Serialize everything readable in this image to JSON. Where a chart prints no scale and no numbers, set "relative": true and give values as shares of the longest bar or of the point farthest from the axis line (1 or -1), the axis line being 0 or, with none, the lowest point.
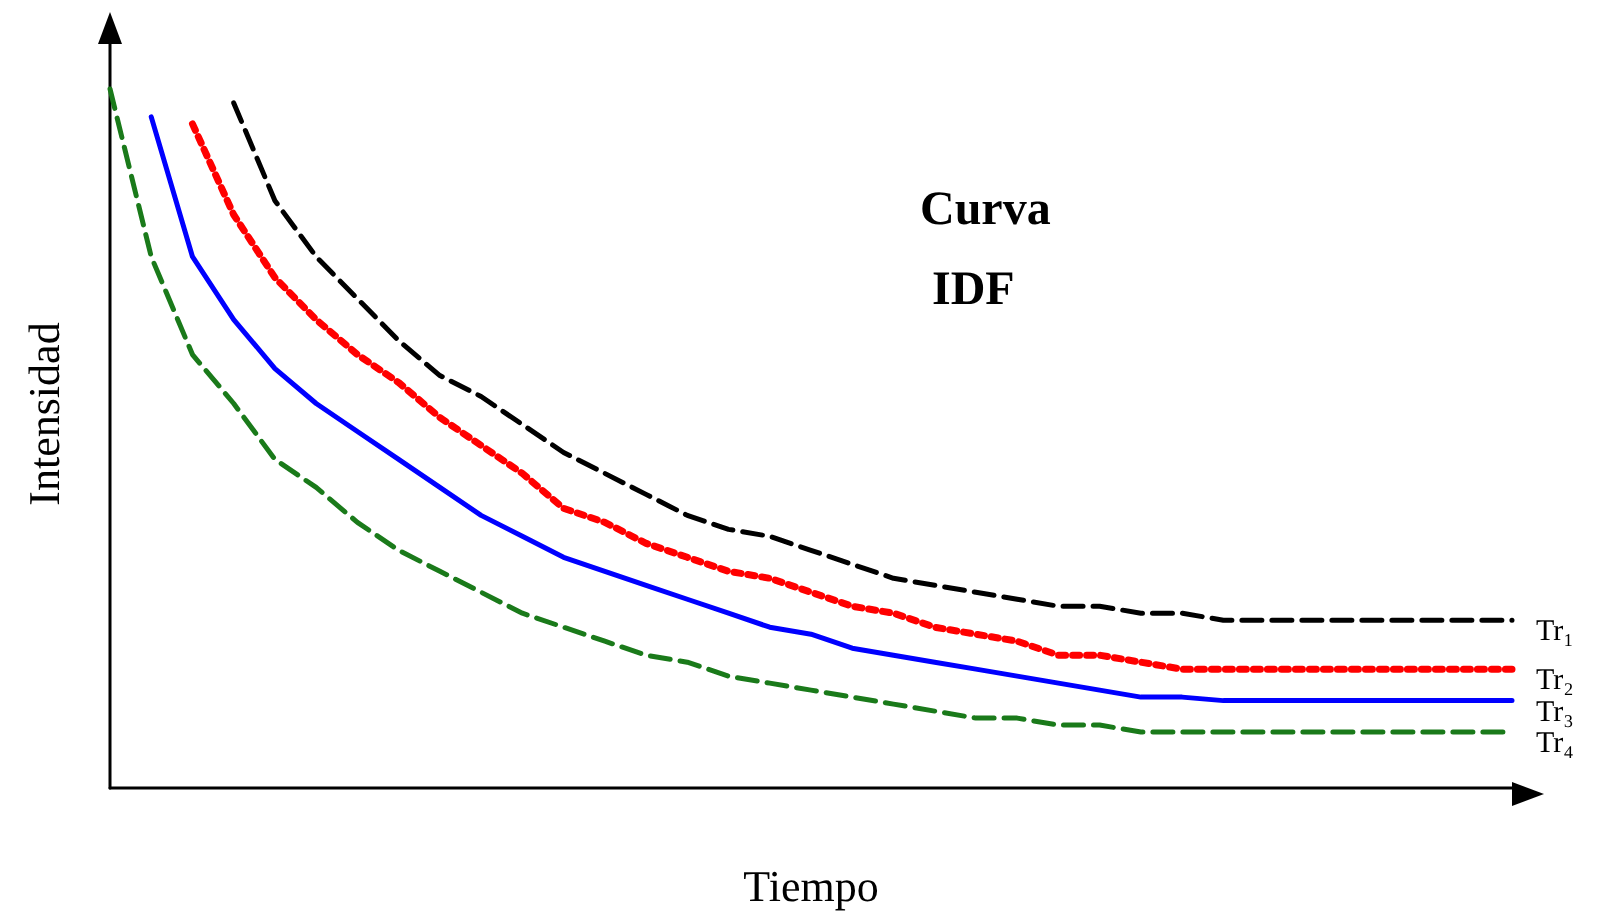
{
  "chart_data": {
    "type": "line",
    "title": "Curva IDF",
    "xlabel": "Tiempo",
    "ylabel": "Intensidad",
    "relative": true,
    "grid": false,
    "legend": false,
    "marker": "none",
    "categories": [
      null,
      null,
      null,
      null,
      null,
      null,
      null,
      null,
      null,
      null,
      null,
      null,
      null,
      null,
      null,
      null,
      null,
      null,
      null,
      null,
      null,
      null,
      null,
      null,
      null,
      null,
      null,
      null,
      null,
      null,
      null,
      null,
      null,
      null,
      null
    ],
    "series": [
      {
        "name": "Tr₁",
        "color": "#000000",
        "line_style": "dashed",
        "values": [
          null,
          null,
          null,
          0.98,
          0.84,
          0.76,
          0.7,
          0.64,
          0.59,
          0.56,
          0.52,
          0.48,
          0.45,
          0.42,
          0.39,
          0.37,
          0.36,
          0.34,
          0.32,
          0.3,
          0.29,
          0.28,
          0.27,
          0.26,
          0.26,
          0.25,
          0.25,
          0.24,
          0.24,
          0.24,
          0.24,
          0.24,
          0.24,
          0.24,
          0.24
        ]
      },
      {
        "name": "Tr₂",
        "color": "#ff0000",
        "line_style": "dotted",
        "values": [
          null,
          null,
          0.95,
          0.82,
          0.73,
          0.67,
          0.62,
          0.58,
          0.53,
          0.49,
          0.45,
          0.4,
          0.38,
          0.35,
          0.33,
          0.31,
          0.3,
          0.28,
          0.26,
          0.25,
          0.23,
          0.22,
          0.21,
          0.19,
          0.19,
          0.18,
          0.17,
          0.17,
          0.17,
          0.17,
          0.17,
          0.17,
          0.17,
          0.17,
          0.17
        ]
      },
      {
        "name": "Tr₃",
        "color": "#0000ff",
        "line_style": "solid",
        "values": [
          null,
          0.96,
          0.76,
          0.67,
          0.6,
          0.55,
          0.51,
          0.47,
          0.43,
          0.39,
          0.36,
          0.33,
          0.31,
          0.29,
          0.27,
          0.25,
          0.23,
          0.22,
          0.2,
          0.19,
          0.18,
          0.17,
          0.16,
          0.15,
          0.14,
          0.13,
          0.13,
          0.125,
          0.125,
          0.125,
          0.125,
          0.125,
          0.125,
          0.125,
          0.125
        ]
      },
      {
        "name": "Tr₄",
        "color": "#1a7a1a",
        "line_style": "dashed",
        "values": [
          1.0,
          0.76,
          0.62,
          0.55,
          0.47,
          0.43,
          0.38,
          0.34,
          0.31,
          0.28,
          0.25,
          0.23,
          0.21,
          0.19,
          0.18,
          0.16,
          0.15,
          0.14,
          0.13,
          0.12,
          0.11,
          0.1,
          0.1,
          0.09,
          0.09,
          0.08,
          0.08,
          0.08,
          0.08,
          0.08,
          0.08,
          0.08,
          0.08,
          0.08,
          0.08
        ]
      }
    ]
  }
}
